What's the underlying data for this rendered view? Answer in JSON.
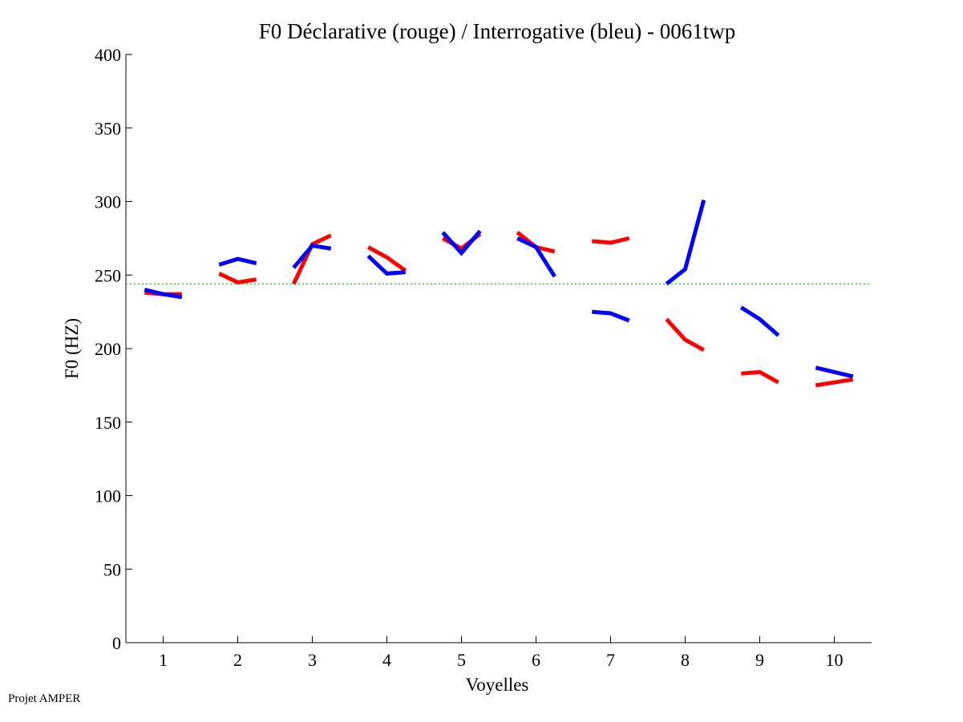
{
  "footer": "Projet AMPER",
  "colors": {
    "declarative": "#ff0000",
    "interrogative": "#0000ff",
    "reference": "#00cc00"
  },
  "chart_data": {
    "type": "line",
    "title": "F0 Déclarative (rouge) / Interrogative (bleu) - 0061twp",
    "xlabel": "Voyelles",
    "ylabel": "F0 (HZ)",
    "xlim": [
      0.5,
      10.5
    ],
    "ylim": [
      0,
      400
    ],
    "xticks": [
      "1",
      "2",
      "3",
      "4",
      "5",
      "6",
      "7",
      "8",
      "9",
      "10"
    ],
    "yticks": [
      "0",
      "50",
      "100",
      "150",
      "200",
      "250",
      "300",
      "350",
      "400"
    ],
    "reference_line": 244,
    "grid": false,
    "series": [
      {
        "color": "red",
        "segments": [
          {
            "vowel": 1,
            "values": [
              238,
              237,
              237
            ]
          },
          {
            "vowel": 2,
            "values": [
              251,
              245,
              247
            ]
          },
          {
            "vowel": 3,
            "values": [
              244,
              271,
              277
            ]
          },
          {
            "vowel": 4,
            "values": [
              269,
              262,
              253
            ]
          },
          {
            "vowel": 5,
            "values": [
              275,
              268,
              278
            ]
          },
          {
            "vowel": 6,
            "values": [
              279,
              269,
              266
            ]
          },
          {
            "vowel": 7,
            "values": [
              273,
              272,
              275
            ]
          },
          {
            "vowel": 8,
            "values": [
              220,
              206,
              199
            ]
          },
          {
            "vowel": 9,
            "values": [
              183,
              184,
              177
            ]
          },
          {
            "vowel": 10,
            "values": [
              175,
              177,
              179
            ]
          }
        ]
      },
      {
        "color": "blue",
        "segments": [
          {
            "vowel": 1,
            "values": [
              240,
              237,
              235
            ]
          },
          {
            "vowel": 2,
            "values": [
              257,
              261,
              258
            ]
          },
          {
            "vowel": 3,
            "values": [
              255,
              270,
              268
            ]
          },
          {
            "vowel": 4,
            "values": [
              263,
              251,
              252
            ]
          },
          {
            "vowel": 5,
            "values": [
              279,
              265,
              280
            ]
          },
          {
            "vowel": 6,
            "values": [
              275,
              269,
              249
            ]
          },
          {
            "vowel": 7,
            "values": [
              225,
              224,
              219
            ]
          },
          {
            "vowel": 8,
            "values": [
              244,
              254,
              301
            ]
          },
          {
            "vowel": 9,
            "values": [
              228,
              220,
              209
            ]
          },
          {
            "vowel": 10,
            "values": [
              187,
              184,
              181
            ]
          }
        ]
      }
    ]
  }
}
